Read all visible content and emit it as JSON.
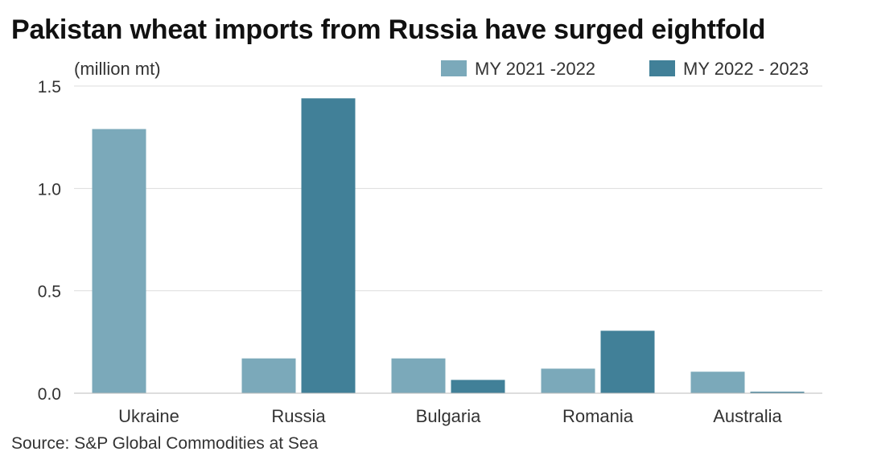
{
  "title": "Pakistan wheat imports from Russia have surged eightfold",
  "source": "Source: S&P Global Commodities at Sea",
  "colors": {
    "series_1": "#7ba9ba",
    "series_2": "#418098",
    "grid": "#dddddd"
  },
  "chart_data": {
    "type": "bar",
    "unit_label": "(million mt)",
    "categories": [
      "Ukraine",
      "Russia",
      "Bulgaria",
      "Romania",
      "Australia"
    ],
    "series": [
      {
        "name": "MY 2021 -2022",
        "values": [
          1.29,
          0.17,
          0.17,
          0.12,
          0.105
        ]
      },
      {
        "name": "MY 2022 - 2023",
        "values": [
          0.0,
          1.44,
          0.065,
          0.305,
          0.007
        ]
      }
    ],
    "ylim": [
      0,
      1.5
    ],
    "yticks": [
      "0.0",
      "0.5",
      "1.0",
      "1.5"
    ],
    "grid": true,
    "legend_position": "top-right"
  }
}
